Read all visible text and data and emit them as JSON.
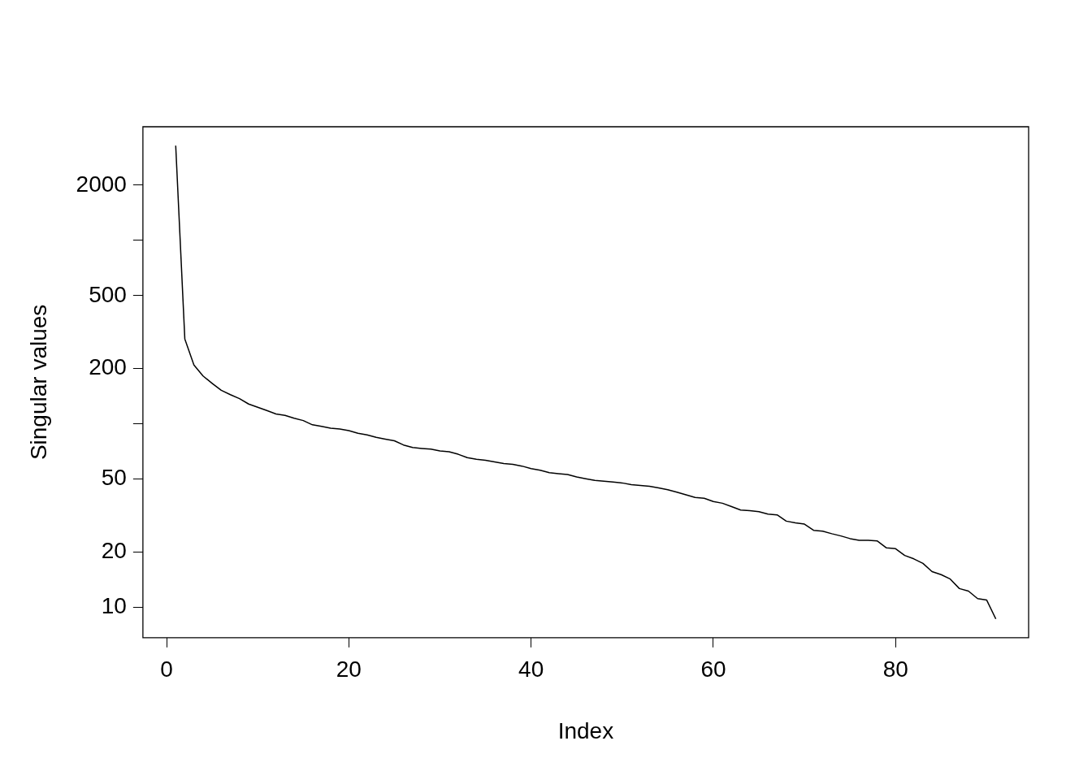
{
  "chart_data": {
    "type": "line",
    "xlabel": "Index",
    "ylabel": "Singular values",
    "log": "y",
    "grid": false,
    "marker": "none",
    "line_style": "solid",
    "color": "#000000",
    "x": [
      1,
      2,
      3,
      4,
      5,
      6,
      7,
      8,
      9,
      10,
      11,
      12,
      13,
      14,
      15,
      16,
      17,
      18,
      19,
      20,
      21,
      22,
      23,
      24,
      25,
      26,
      27,
      28,
      29,
      30,
      31,
      32,
      33,
      34,
      35,
      36,
      37,
      38,
      39,
      40,
      41,
      42,
      43,
      44,
      45,
      46,
      47,
      48,
      49,
      50,
      51,
      52,
      53,
      54,
      55,
      56,
      57,
      58,
      59,
      60,
      61,
      62,
      63,
      64,
      65,
      66,
      67,
      68,
      69,
      70,
      71,
      72,
      73,
      74,
      75,
      76,
      77,
      78,
      79,
      80,
      81,
      82,
      83,
      84,
      85,
      86,
      87,
      88,
      89,
      90,
      91
    ],
    "values": [
      3290,
      290,
      209,
      182,
      166,
      152,
      144,
      137,
      128,
      123,
      118,
      113,
      111,
      107,
      104,
      98.6,
      96.6,
      94.6,
      93.5,
      91.6,
      88.7,
      86.9,
      84.2,
      82.4,
      80.7,
      76.5,
      74.1,
      73.3,
      72.6,
      71.0,
      70.3,
      68.1,
      65.3,
      63.9,
      63.2,
      61.9,
      60.6,
      60.0,
      58.7,
      56.9,
      55.7,
      54.0,
      53.4,
      52.8,
      51.2,
      50.1,
      49.0,
      48.5,
      48.0,
      47.5,
      46.5,
      46.0,
      45.5,
      44.6,
      43.6,
      42.3,
      40.9,
      39.6,
      39.2,
      37.6,
      36.8,
      35.3,
      33.8,
      33.5,
      33.1,
      32.1,
      31.8,
      29.4,
      28.8,
      28.3,
      26.2,
      25.9,
      25.1,
      24.4,
      23.6,
      23.1,
      23.1,
      22.9,
      21.0,
      20.8,
      19.1,
      18.3,
      17.3,
      15.6,
      15.0,
      14.2,
      12.6,
      12.2,
      11.1,
      10.9,
      8.6
    ],
    "xlim": [
      -2.6,
      94.6
    ],
    "ylim": [
      6.8,
      4170
    ],
    "xticks": [
      0,
      20,
      40,
      60,
      80
    ],
    "yticks": [
      10,
      20,
      50,
      {
        "value": 100,
        "label": null
      },
      200,
      500,
      {
        "value": 1000,
        "label": null
      },
      2000
    ]
  }
}
